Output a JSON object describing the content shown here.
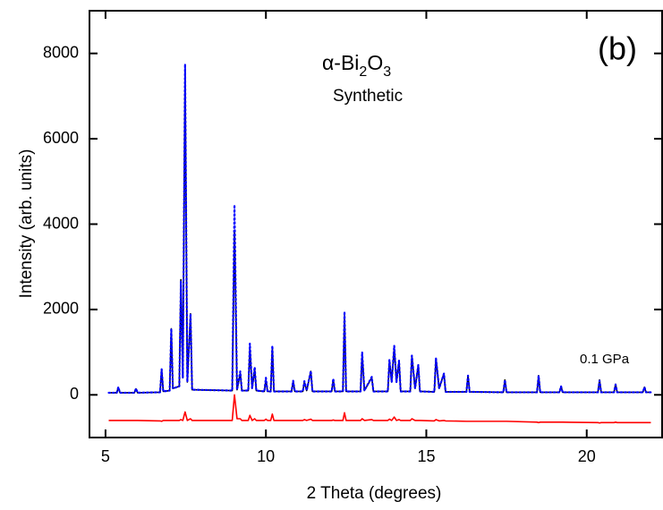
{
  "chart_data": {
    "type": "line",
    "x_label": "2 Theta (degrees)",
    "y_label": "Intensity (arb. units)",
    "panel_label": "(b)",
    "compound_parts": [
      "α-Bi",
      "2",
      "O",
      "3"
    ],
    "sample": "Synthetic",
    "pressure_label": "0.1 GPa",
    "xlim": [
      4.5,
      22.35
    ],
    "ylim": [
      -1000,
      9000
    ],
    "xticks": [
      5,
      10,
      15,
      20
    ],
    "yticks": [
      0,
      2000,
      4000,
      6000,
      8000
    ],
    "x": [
      5.1,
      5.35,
      5.4,
      5.45,
      5.9,
      5.95,
      6.0,
      6.7,
      6.75,
      6.8,
      7.0,
      7.05,
      7.1,
      7.3,
      7.35,
      7.41,
      7.48,
      7.55,
      7.65,
      7.7,
      8.95,
      9.02,
      9.1,
      9.2,
      9.25,
      9.45,
      9.5,
      9.57,
      9.65,
      9.7,
      9.95,
      10.0,
      10.05,
      10.15,
      10.2,
      10.25,
      10.8,
      10.85,
      10.9,
      11.15,
      11.2,
      11.27,
      11.4,
      11.45,
      12.05,
      12.1,
      12.15,
      12.4,
      12.45,
      12.5,
      12.95,
      13.0,
      13.07,
      13.3,
      13.35,
      13.8,
      13.85,
      13.92,
      14.0,
      14.07,
      14.15,
      14.2,
      14.5,
      14.55,
      14.65,
      14.75,
      14.8,
      15.25,
      15.3,
      15.4,
      15.55,
      15.6,
      16.25,
      16.3,
      16.35,
      17.4,
      17.45,
      17.5,
      18.45,
      18.5,
      18.55,
      19.15,
      19.2,
      19.25,
      20.35,
      20.4,
      20.45,
      20.85,
      20.9,
      20.95,
      21.75,
      21.8,
      21.85,
      22.0
    ],
    "series": [
      {
        "color": "#000000",
        "line_style": "solid",
        "values": [
          50,
          50,
          170,
          50,
          50,
          140,
          50,
          60,
          600,
          80,
          100,
          1550,
          150,
          200,
          2700,
          400,
          7600,
          300,
          1900,
          120,
          100,
          3850,
          120,
          500,
          100,
          100,
          1100,
          150,
          600,
          100,
          80,
          350,
          80,
          80,
          1100,
          80,
          80,
          320,
          80,
          80,
          300,
          100,
          550,
          80,
          80,
          350,
          80,
          80,
          1850,
          80,
          80,
          950,
          100,
          400,
          80,
          80,
          800,
          300,
          1100,
          300,
          800,
          80,
          80,
          900,
          150,
          700,
          80,
          70,
          850,
          150,
          500,
          70,
          70,
          450,
          70,
          60,
          350,
          60,
          60,
          450,
          60,
          60,
          200,
          60,
          60,
          350,
          60,
          60,
          250,
          60,
          60,
          180,
          60,
          60
        ]
      },
      {
        "color": "#0000ff",
        "line_style": "dotted",
        "values": [
          50,
          50,
          180,
          50,
          50,
          150,
          50,
          60,
          600,
          80,
          100,
          1550,
          150,
          200,
          2650,
          400,
          7750,
          300,
          1900,
          120,
          100,
          4450,
          120,
          550,
          100,
          100,
          1200,
          150,
          650,
          100,
          80,
          400,
          80,
          80,
          1150,
          80,
          80,
          330,
          80,
          80,
          320,
          100,
          560,
          80,
          80,
          380,
          80,
          80,
          1950,
          80,
          80,
          1000,
          100,
          420,
          80,
          80,
          820,
          300,
          1150,
          300,
          800,
          80,
          80,
          920,
          150,
          700,
          80,
          70,
          860,
          150,
          500,
          70,
          70,
          450,
          70,
          60,
          350,
          60,
          60,
          450,
          60,
          60,
          200,
          60,
          60,
          330,
          60,
          60,
          240,
          60,
          60,
          180,
          60,
          60
        ]
      },
      {
        "color": "#ff0000",
        "line_style": "solid",
        "values": [
          -600,
          -600,
          -600,
          -600,
          -600,
          -600,
          -600,
          -610,
          -620,
          -600,
          -600,
          -600,
          -600,
          -600,
          -580,
          -600,
          -400,
          -600,
          -560,
          -600,
          -600,
          0,
          -560,
          -560,
          -600,
          -600,
          -480,
          -600,
          -560,
          -600,
          -600,
          -570,
          -600,
          -600,
          -450,
          -600,
          -600,
          -600,
          -600,
          -600,
          -580,
          -600,
          -570,
          -600,
          -600,
          -590,
          -600,
          -600,
          -420,
          -600,
          -600,
          -560,
          -600,
          -580,
          -600,
          -600,
          -570,
          -600,
          -520,
          -600,
          -580,
          -600,
          -600,
          -560,
          -600,
          -600,
          -600,
          -610,
          -580,
          -610,
          -600,
          -610,
          -620,
          -620,
          -620,
          -620,
          -620,
          -620,
          -640,
          -650,
          -640,
          -640,
          -640,
          -640,
          -650,
          -660,
          -650,
          -650,
          -640,
          -650,
          -650,
          -650,
          -650,
          -650
        ]
      }
    ]
  }
}
